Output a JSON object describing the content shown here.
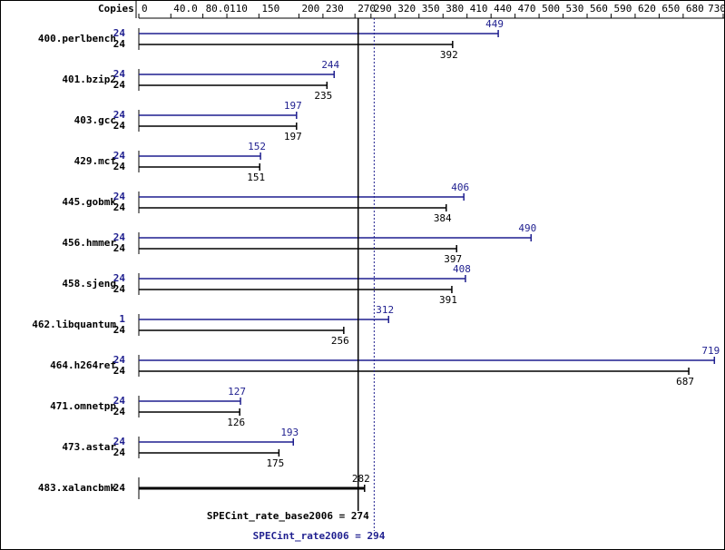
{
  "chart_data": {
    "type": "bar",
    "orientation": "horizontal",
    "axis_label": "Copies",
    "xlim": [
      0,
      730
    ],
    "xticks": [
      0,
      {
        "value": 40,
        "label": "40.0"
      },
      {
        "value": 80,
        "label": "80.0"
      },
      110,
      150,
      200,
      230,
      270,
      290,
      320,
      350,
      380,
      410,
      440,
      470,
      500,
      530,
      560,
      590,
      620,
      650,
      680,
      730
    ],
    "categories": [
      "400.perlbench",
      "401.bzip2",
      "403.gcc",
      "429.mcf",
      "445.gobmk",
      "456.hmmer",
      "458.sjeng",
      "462.libquantum",
      "464.h264ref",
      "471.omnetpp",
      "473.astar",
      "483.xalancbmk"
    ],
    "series": [
      {
        "color": "#1f1f8f",
        "copies": [
          24,
          24,
          24,
          24,
          24,
          24,
          24,
          1,
          24,
          24,
          24,
          null
        ],
        "values": [
          449,
          244,
          197,
          152,
          406,
          490,
          408,
          312,
          719,
          127,
          193,
          null
        ]
      },
      {
        "color": "#000000",
        "copies": [
          24,
          24,
          24,
          24,
          24,
          24,
          24,
          24,
          24,
          24,
          24,
          24
        ],
        "values": [
          392,
          235,
          197,
          151,
          384,
          397,
          391,
          256,
          687,
          126,
          175,
          282
        ]
      }
    ],
    "reference_lines": [
      {
        "label": "SPECint_rate_base2006 = 274",
        "value": 274,
        "color": "#000000",
        "style": "solid"
      },
      {
        "label": "SPECint_rate2006 = 294",
        "value": 294,
        "color": "#1f1f8f",
        "style": "dotted"
      }
    ]
  }
}
